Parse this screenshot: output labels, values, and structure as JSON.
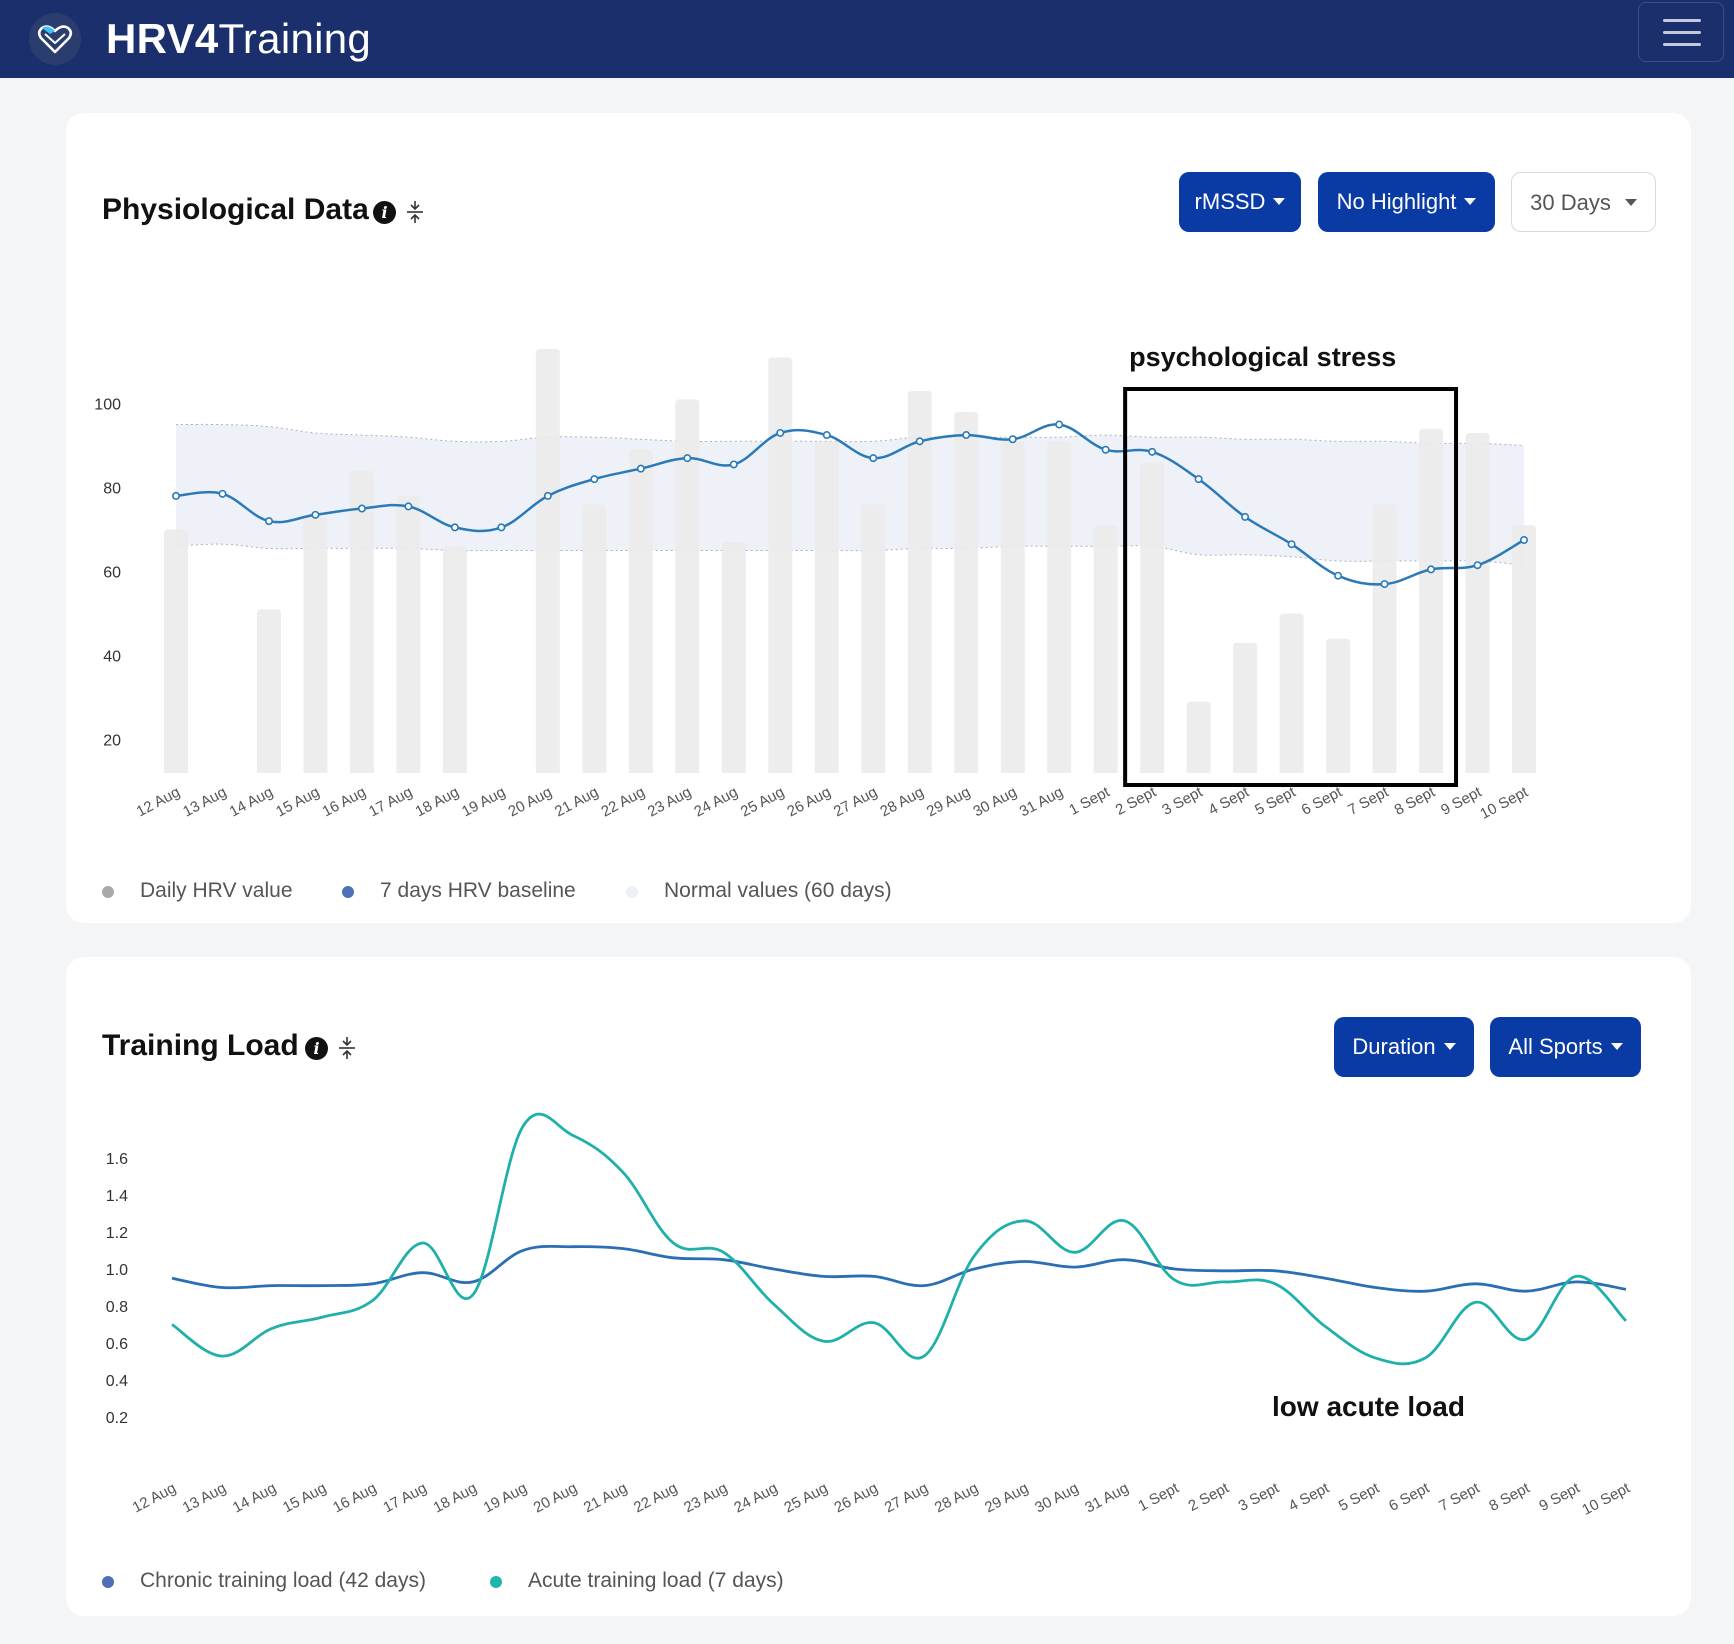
{
  "app": {
    "brand_bold": "HRV4",
    "brand_light": "Training"
  },
  "physio": {
    "title": "Physiological Data",
    "buttons": {
      "metric": "rMSSD",
      "highlight": "No Highlight",
      "range": "30 Days"
    },
    "annotation": "psychological stress",
    "legend": [
      {
        "label": "Daily HRV value",
        "color": "#a9a9a9"
      },
      {
        "label": "7 days HRV baseline",
        "color": "#4f6fb6"
      },
      {
        "label": "Normal values (60 days)",
        "color": "#eef0f8"
      }
    ]
  },
  "training": {
    "title": "Training Load",
    "buttons": {
      "metric": "Duration",
      "sport": "All Sports"
    },
    "annotation": "low acute load",
    "legend": [
      {
        "label": "Chronic training load (42 days)",
        "color": "#4f6fb6"
      },
      {
        "label": "Acute training load (7 days)",
        "color": "#1fb5ad"
      }
    ]
  },
  "chart_data": [
    {
      "type": "bar",
      "categories": [
        "12 Aug",
        "13 Aug",
        "14 Aug",
        "15 Aug",
        "16 Aug",
        "17 Aug",
        "18 Aug",
        "19 Aug",
        "20 Aug",
        "21 Aug",
        "22 Aug",
        "23 Aug",
        "24 Aug",
        "25 Aug",
        "26 Aug",
        "27 Aug",
        "28 Aug",
        "29 Aug",
        "30 Aug",
        "31 Aug",
        "1 Sept",
        "2 Sept",
        "3 Sept",
        "4 Sept",
        "5 Sept",
        "6 Sept",
        "7 Sept",
        "8 Sept",
        "9 Sept",
        "10 Sept"
      ],
      "series": [
        {
          "name": "Daily HRV value",
          "type": "bar",
          "color": "#ebebeb",
          "values": [
            70,
            null,
            51,
            73,
            84,
            78,
            66,
            null,
            113,
            76,
            89,
            101,
            67,
            111,
            91,
            76,
            103,
            98,
            91,
            91,
            71,
            86,
            29,
            43,
            50,
            44,
            76,
            94,
            93,
            71
          ]
        },
        {
          "name": "7 days HRV baseline",
          "type": "line",
          "color": "#2a7ab8",
          "values": [
            78,
            78.5,
            72,
            73.5,
            75,
            75.5,
            70.5,
            70.5,
            78,
            82,
            84.5,
            87,
            85.5,
            93,
            92.5,
            87,
            91,
            92.5,
            91.5,
            95,
            89,
            88.5,
            82,
            73,
            66.5,
            59,
            57,
            60.5,
            61.5,
            67.5
          ]
        },
        {
          "name": "Normal values (60 days)",
          "type": "area",
          "color": "#eef0f8",
          "upper": [
            95,
            95,
            94.5,
            93,
            92.5,
            92,
            91,
            91,
            92,
            92,
            91.5,
            91,
            91,
            91,
            91,
            91,
            92,
            92,
            92,
            92,
            92.5,
            92,
            92,
            91.5,
            91.5,
            91,
            91,
            90.5,
            90.5,
            90
          ],
          "lower": [
            66,
            66.5,
            65.5,
            65.5,
            65.5,
            65.5,
            65,
            65,
            65,
            65,
            65,
            65,
            65,
            65,
            65,
            65,
            65.5,
            65.5,
            66,
            66,
            66,
            66,
            64,
            64,
            63.5,
            62.5,
            62.5,
            62.5,
            62.5,
            61.5
          ]
        }
      ],
      "yticks": [
        20,
        40,
        60,
        80,
        100
      ],
      "ylim": [
        12,
        118
      ],
      "annotation_box": {
        "label": "psychological stress",
        "from": "2 Sept",
        "to": "8 Sept"
      }
    },
    {
      "type": "line",
      "categories": [
        "12 Aug",
        "13 Aug",
        "14 Aug",
        "15 Aug",
        "16 Aug",
        "17 Aug",
        "18 Aug",
        "19 Aug",
        "20 Aug",
        "21 Aug",
        "22 Aug",
        "23 Aug",
        "24 Aug",
        "25 Aug",
        "26 Aug",
        "27 Aug",
        "28 Aug",
        "29 Aug",
        "30 Aug",
        "31 Aug",
        "1 Sept",
        "2 Sept",
        "3 Sept",
        "4 Sept",
        "5 Sept",
        "6 Sept",
        "7 Sept",
        "8 Sept",
        "9 Sept",
        "10 Sept"
      ],
      "series": [
        {
          "name": "Chronic training load (42 days)",
          "color": "#2a6fb3",
          "values": [
            0.95,
            0.9,
            0.91,
            0.91,
            0.92,
            0.98,
            0.93,
            1.1,
            1.12,
            1.11,
            1.06,
            1.05,
            1.0,
            0.96,
            0.96,
            0.91,
            1.0,
            1.04,
            1.01,
            1.05,
            1.0,
            0.99,
            0.99,
            0.95,
            0.9,
            0.88,
            0.92,
            0.88,
            0.93,
            0.89
          ]
        },
        {
          "name": "Acute training load (7 days)",
          "color": "#1fb0aa",
          "values": [
            0.7,
            0.53,
            0.68,
            0.74,
            0.83,
            1.14,
            0.86,
            1.77,
            1.72,
            1.52,
            1.14,
            1.09,
            0.81,
            0.61,
            0.71,
            0.53,
            1.07,
            1.26,
            1.09,
            1.26,
            0.94,
            0.93,
            0.92,
            0.69,
            0.52,
            0.52,
            0.82,
            0.62,
            0.96,
            0.72
          ]
        }
      ],
      "yticks": [
        0.2,
        0.4,
        0.6,
        0.8,
        1.0,
        1.2,
        1.4,
        1.6
      ],
      "ylim": [
        0.05,
        1.82
      ],
      "annotation": "low acute load"
    }
  ]
}
